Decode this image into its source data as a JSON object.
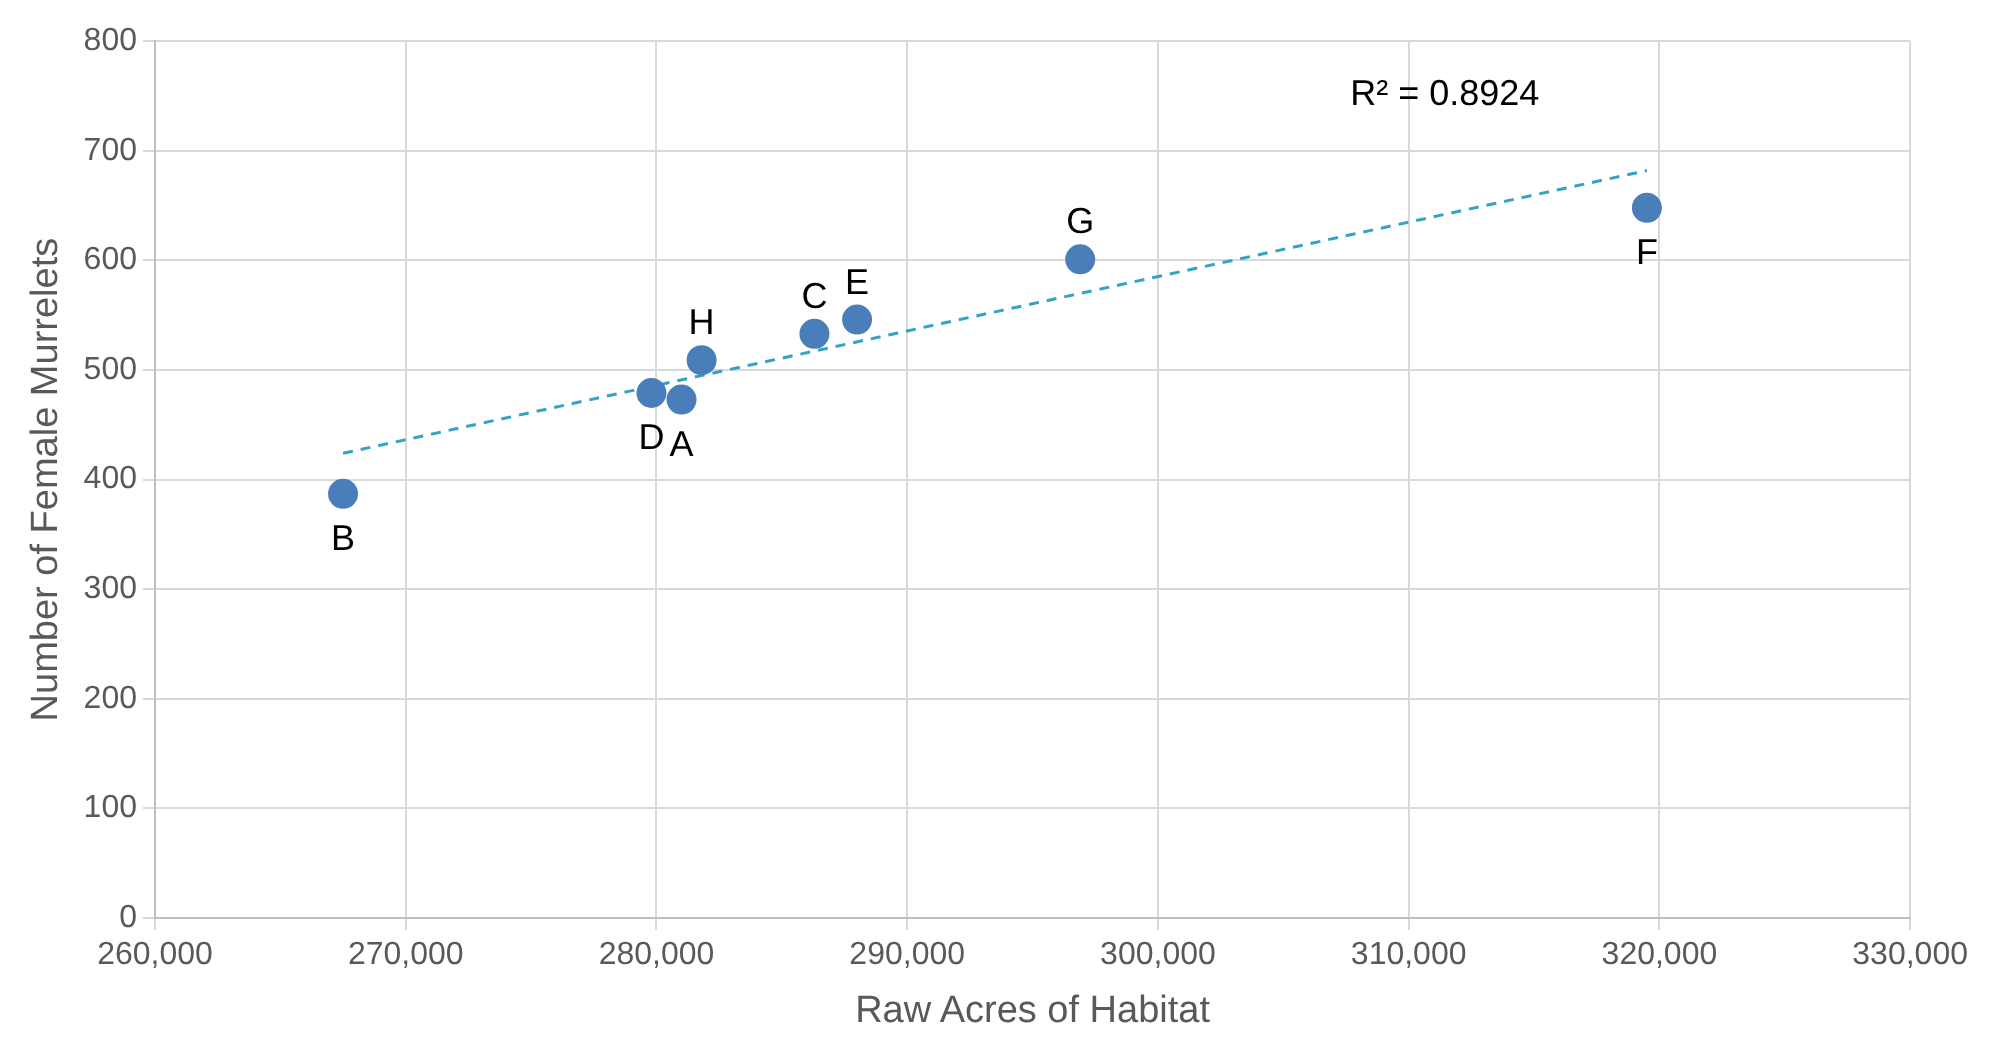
{
  "chart_data": {
    "type": "scatter",
    "xlabel": "Raw Acres of Habitat",
    "ylabel": "Number of Female Murrelets",
    "xlim": [
      260000,
      330000
    ],
    "xticks": [
      {
        "value": 260000,
        "label": "260,000"
      },
      {
        "value": 270000,
        "label": "270,000"
      },
      {
        "value": 280000,
        "label": "280,000"
      },
      {
        "value": 290000,
        "label": "290,000"
      },
      {
        "value": 300000,
        "label": "300,000"
      },
      {
        "value": 310000,
        "label": "310,000"
      },
      {
        "value": 320000,
        "label": "320,000"
      },
      {
        "value": 330000,
        "label": "330,000"
      }
    ],
    "ylim": [
      0,
      800
    ],
    "yticks": [
      0,
      100,
      200,
      300,
      400,
      500,
      600,
      700,
      800
    ],
    "grid": true,
    "legend": false,
    "marker": "circle",
    "series": [
      {
        "color": "#4a7ebb",
        "x": [
          267500,
          279800,
          281000,
          281800,
          286300,
          288000,
          296900,
          319500
        ],
        "values": [
          387,
          479,
          473,
          509,
          533,
          546,
          601,
          648
        ]
      },
      {
        "type": "line",
        "color": "#34a3c4",
        "line_style": "dashed",
        "marker": "none",
        "x": [
          267500,
          319500
        ],
        "values": [
          424,
          682
        ]
      }
    ],
    "annotations": [
      {
        "text": "B",
        "x": 267500,
        "y": 387
      },
      {
        "text": "D",
        "x": 279800,
        "y": 479
      },
      {
        "text": "A",
        "x": 281000,
        "y": 473
      },
      {
        "text": "H",
        "x": 281800,
        "y": 509
      },
      {
        "text": "C",
        "x": 286300,
        "y": 533
      },
      {
        "text": "E",
        "x": 288000,
        "y": 546
      },
      {
        "text": "G",
        "x": 296900,
        "y": 601
      },
      {
        "text": "F",
        "x": 319500,
        "y": 648
      },
      "R² = 0.8924"
    ]
  }
}
